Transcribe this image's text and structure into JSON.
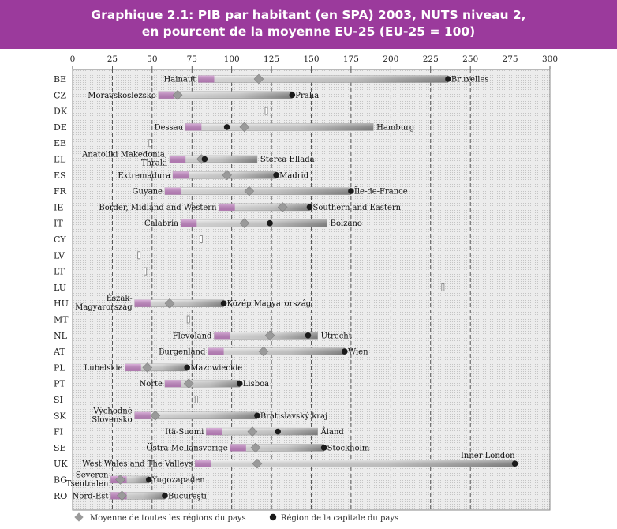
{
  "title": {
    "line1": "Graphique 2.1: PIB par habitant (en SPA) 2003, NUTS niveau 2,",
    "line2": "en pourcent de la moyenne EU-25 (EU-25 = 100)"
  },
  "colors": {
    "title_bg": "#9b3a9c",
    "low_segment": "#c888c8",
    "bar_light": "#f2f2f2",
    "bar_dark": "#8c8c8c",
    "average_marker": "#9a9a9a",
    "capital_marker": "#1a1a1a",
    "plot_bg": "#e4e4e4"
  },
  "chart_data": {
    "type": "range",
    "xlim": [
      0,
      300
    ],
    "xticks": [
      0,
      25,
      50,
      75,
      100,
      125,
      150,
      175,
      200,
      225,
      250,
      275,
      300
    ],
    "grid": "vertical dashed lines at each tick",
    "legend": {
      "average": "Moyenne de toutes les régions du pays",
      "capital": "Région de la capitale du pays"
    },
    "rows": [
      {
        "country": "BE",
        "min": 79,
        "max": 236,
        "avg": 117,
        "cap": 236,
        "low_label": "Hainaut",
        "high_label": "Bruxelles"
      },
      {
        "country": "CZ",
        "min": 54,
        "max": 138,
        "avg": 66,
        "cap": 138,
        "low_label": "Moravskoslezsko",
        "high_label": "Praha"
      },
      {
        "country": "DK",
        "min": 121,
        "max": 122
      },
      {
        "country": "DE",
        "min": 71,
        "max": 189,
        "avg": 108,
        "cap": 97,
        "low_label": "Dessau",
        "high_label": "Hamburg"
      },
      {
        "country": "EE",
        "min": 48,
        "max": 49
      },
      {
        "country": "EL",
        "min": 61,
        "max": 116,
        "avg": 81,
        "cap": 83,
        "low_label": "Anatoliki Makedonia, Thraki",
        "high_label": "Sterea Ellada"
      },
      {
        "country": "ES",
        "min": 63,
        "max": 128,
        "avg": 97,
        "cap": 128,
        "low_label": "Extremadura",
        "high_label": "Madrid"
      },
      {
        "country": "FR",
        "min": 58,
        "max": 175,
        "avg": 111,
        "cap": 175,
        "low_label": "Guyane",
        "high_label": "Île-de-France"
      },
      {
        "country": "IE",
        "min": 92,
        "max": 149,
        "avg": 132,
        "cap": 149,
        "low_label": "Border, Midland and Western",
        "high_label": "Southern and Eastern"
      },
      {
        "country": "IT",
        "min": 68,
        "max": 160,
        "avg": 108,
        "cap": 124,
        "low_label": "Calabria",
        "high_label": "Bolzano"
      },
      {
        "country": "CY",
        "min": 80,
        "max": 81
      },
      {
        "country": "LV",
        "min": 41,
        "max": 42
      },
      {
        "country": "LT",
        "min": 45,
        "max": 46
      },
      {
        "country": "LU",
        "min": 232,
        "max": 233
      },
      {
        "country": "HU",
        "min": 39,
        "max": 95,
        "avg": 61,
        "cap": 95,
        "low_label": "Észak-Magyarország",
        "high_label": "Közép Magyarország"
      },
      {
        "country": "MT",
        "min": 72,
        "max": 73
      },
      {
        "country": "NL",
        "min": 89,
        "max": 154,
        "avg": 124,
        "cap": 148,
        "low_label": "Flevoland",
        "high_label": "Utrecht"
      },
      {
        "country": "AT",
        "min": 85,
        "max": 171,
        "avg": 120,
        "cap": 171,
        "low_label": "Burgenland",
        "high_label": "Wien"
      },
      {
        "country": "PL",
        "min": 33,
        "max": 72,
        "avg": 47,
        "cap": 72,
        "low_label": "Lubelskie",
        "high_label": "Mazowieckie"
      },
      {
        "country": "PT",
        "min": 58,
        "max": 105,
        "avg": 73,
        "cap": 105,
        "low_label": "Norte",
        "high_label": "Lisboa"
      },
      {
        "country": "SI",
        "min": 77,
        "max": 78
      },
      {
        "country": "SK",
        "min": 39,
        "max": 116,
        "avg": 52,
        "cap": 116,
        "low_label": "Východné Slovensko",
        "high_label": "Bratislavský kraj"
      },
      {
        "country": "FI",
        "min": 84,
        "max": 154,
        "avg": 113,
        "cap": 129,
        "low_label": "Itä-Suomi",
        "high_label": "Åland"
      },
      {
        "country": "SE",
        "min": 99,
        "max": 158,
        "avg": 115,
        "cap": 158,
        "low_label": "Östra Mellansverige",
        "high_label": "Stockholm"
      },
      {
        "country": "UK",
        "min": 77,
        "max": 278,
        "avg": 116,
        "cap": 278,
        "low_label": "West Wales and The Valleys",
        "high_label": "Inner London"
      },
      {
        "country": "BG",
        "min": 24,
        "max": 48,
        "avg": 30,
        "cap": 48,
        "low_label": "Severen Tsentralen",
        "high_label": "Yugozapaden"
      },
      {
        "country": "RO",
        "min": 24,
        "max": 58,
        "avg": 31,
        "cap": 58,
        "low_label": "Nord-Est",
        "high_label": "Bucureşti"
      }
    ]
  }
}
